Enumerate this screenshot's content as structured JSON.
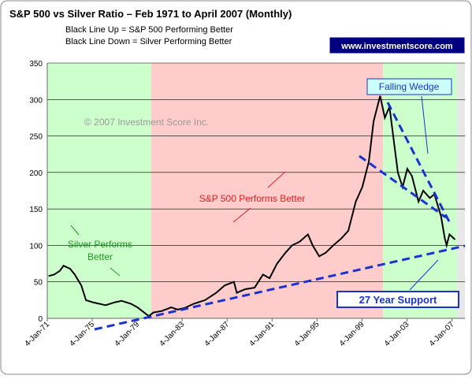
{
  "chart_data": {
    "type": "line",
    "title": "S&P 500 vs Silver Ratio – Feb 1971 to April 2007 (Monthly)",
    "subtitle": [
      "Black Line Up = S&P 500 Performing Better",
      "Black Line Down = Silver Performing Better"
    ],
    "annotations": {
      "website": "www.investmentscore.com",
      "copyright": "© 2007 Investment Score Inc.",
      "wedge": "Falling Wedge",
      "sp500": "S&P 500 Performs Better",
      "silver": [
        "Silver Performs",
        "Better"
      ],
      "support": "27 Year Support"
    },
    "color": "#000000",
    "x": [
      "1971-02",
      "1971-08",
      "1972-02",
      "1972-06",
      "1973-01",
      "1973-06",
      "1974-01",
      "1974-06",
      "1975-01",
      "1975-08",
      "1976-03",
      "1977-01",
      "1977-08",
      "1978-06",
      "1979-01",
      "1979-06",
      "1980-01",
      "1980-06",
      "1981-03",
      "1982-01",
      "1982-08",
      "1983-03",
      "1984-01",
      "1985-01",
      "1986-01",
      "1986-10",
      "1987-08",
      "1987-11",
      "1988-08",
      "1989-06",
      "1990-03",
      "1990-10",
      "1991-06",
      "1992-03",
      "1992-10",
      "1993-06",
      "1994-03",
      "1994-08",
      "1995-03",
      "1995-10",
      "1996-06",
      "1997-03",
      "1997-10",
      "1998-06",
      "1999-01",
      "1999-08",
      "2000-01",
      "2000-08",
      "2001-01",
      "2001-06",
      "2001-10",
      "2002-03",
      "2002-08",
      "2003-01",
      "2003-06",
      "2004-01",
      "2004-06",
      "2005-01",
      "2005-06",
      "2006-01",
      "2006-05",
      "2006-07",
      "2006-10",
      "2007-04"
    ],
    "values": [
      58,
      60,
      65,
      72,
      68,
      60,
      45,
      25,
      22,
      20,
      18,
      22,
      24,
      20,
      15,
      10,
      3,
      8,
      10,
      15,
      12,
      14,
      20,
      25,
      35,
      45,
      50,
      35,
      40,
      42,
      60,
      55,
      75,
      90,
      100,
      105,
      115,
      100,
      85,
      90,
      100,
      110,
      120,
      160,
      180,
      215,
      270,
      305,
      275,
      290,
      250,
      200,
      180,
      205,
      195,
      160,
      175,
      165,
      170,
      140,
      110,
      100,
      115,
      108
    ],
    "xlim": [
      "1971-01-04",
      "2008-03-01"
    ],
    "xticks": [
      {
        "value": "1971-01-04",
        "label": "4-Jan-71"
      },
      {
        "value": "1975-01-04",
        "label": "4-Jan-75"
      },
      {
        "value": "1979-01-04",
        "label": "4-Jan-79"
      },
      {
        "value": "1983-01-04",
        "label": "4-Jan-83"
      },
      {
        "value": "1987-01-04",
        "label": "4-Jan-87"
      },
      {
        "value": "1991-01-04",
        "label": "4-Jan-91"
      },
      {
        "value": "1995-01-04",
        "label": "4-Jan-95"
      },
      {
        "value": "1999-01-04",
        "label": "4-Jan-99"
      },
      {
        "value": "2003-01-04",
        "label": "4-Jan-03"
      },
      {
        "value": "2007-01-04",
        "label": "4-Jan-07"
      }
    ],
    "ylim": [
      0,
      350
    ],
    "yticks": [
      0,
      50,
      100,
      150,
      200,
      250,
      300,
      350
    ],
    "grid": true
  }
}
